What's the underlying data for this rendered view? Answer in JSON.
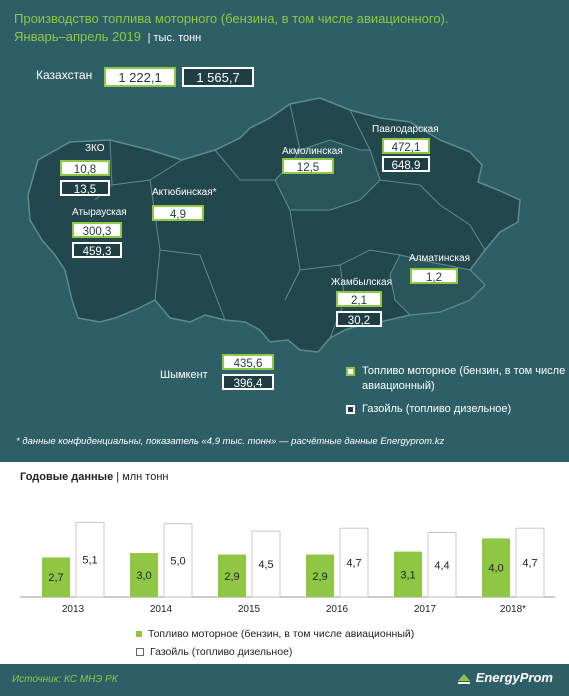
{
  "header": {
    "title_line1": "Производство топлива моторного (бензина, в том числе авиационного).",
    "title_line2": "Январь–апрель 2019",
    "unit": "| тыс. тонн"
  },
  "kazakhstan": {
    "label": "Казахстан",
    "fuel": "1 222,1",
    "gasoil": "1 565,7"
  },
  "regions": [
    {
      "name": "ЗКО",
      "fuel": "10,8",
      "gasoil": "13,5"
    },
    {
      "name": "Атырауская",
      "fuel": "300,3",
      "gasoil": "459,3"
    },
    {
      "name": "Актюбинская*",
      "fuel": "4,9"
    },
    {
      "name": "Акмолинская",
      "fuel": "12,5"
    },
    {
      "name": "Павлодарская",
      "fuel": "472,1",
      "gasoil": "648,9"
    },
    {
      "name": "Алматинская",
      "fuel": "1,2"
    },
    {
      "name": "Жамбылская",
      "fuel": "2,1",
      "gasoil": "30,2"
    },
    {
      "name": "Шымкент",
      "fuel": "435,6",
      "gasoil": "396,4"
    }
  ],
  "map_legend": {
    "fuel": "Топливо моторное (бензин, в том числе авиационный)",
    "gasoil": "Газойль (топливо дизельное)"
  },
  "note": "* данные конфиденциальны, показатель «4,9 тыс. тонн» — расчётные данные Energyprom.kz",
  "annual": {
    "title": "Годовые данные",
    "unit": "| млн тонн"
  },
  "chart_data": {
    "type": "bar",
    "title": "Годовые данные",
    "ylabel": "млн тонн",
    "categories": [
      "2013",
      "2014",
      "2015",
      "2016",
      "2017",
      "2018*"
    ],
    "series": [
      {
        "name": "Топливо моторное (бензин, в том числе авиационный)",
        "values": [
          2.7,
          3.0,
          2.9,
          2.9,
          3.1,
          4.0
        ],
        "labels": [
          "2,7",
          "3,0",
          "2,9",
          "2,9",
          "3,1",
          "4,0"
        ],
        "color": "#8fc744"
      },
      {
        "name": "Газойль (топливо дизельное)",
        "values": [
          5.1,
          5.0,
          4.5,
          4.7,
          4.4,
          4.7
        ],
        "labels": [
          "5,1",
          "5,0",
          "4,5",
          "4,7",
          "4,4",
          "4,7"
        ],
        "color": "#ffffff"
      }
    ],
    "ylim": [
      0,
      5.6
    ],
    "grid": false,
    "legend": "bottom"
  },
  "footer": {
    "source": "Источник: КС МНЭ РК",
    "logo": "EnergyProm"
  },
  "colors": {
    "background": "#2f5f66",
    "accent": "#8fc744",
    "map_fill": "#22474d"
  }
}
